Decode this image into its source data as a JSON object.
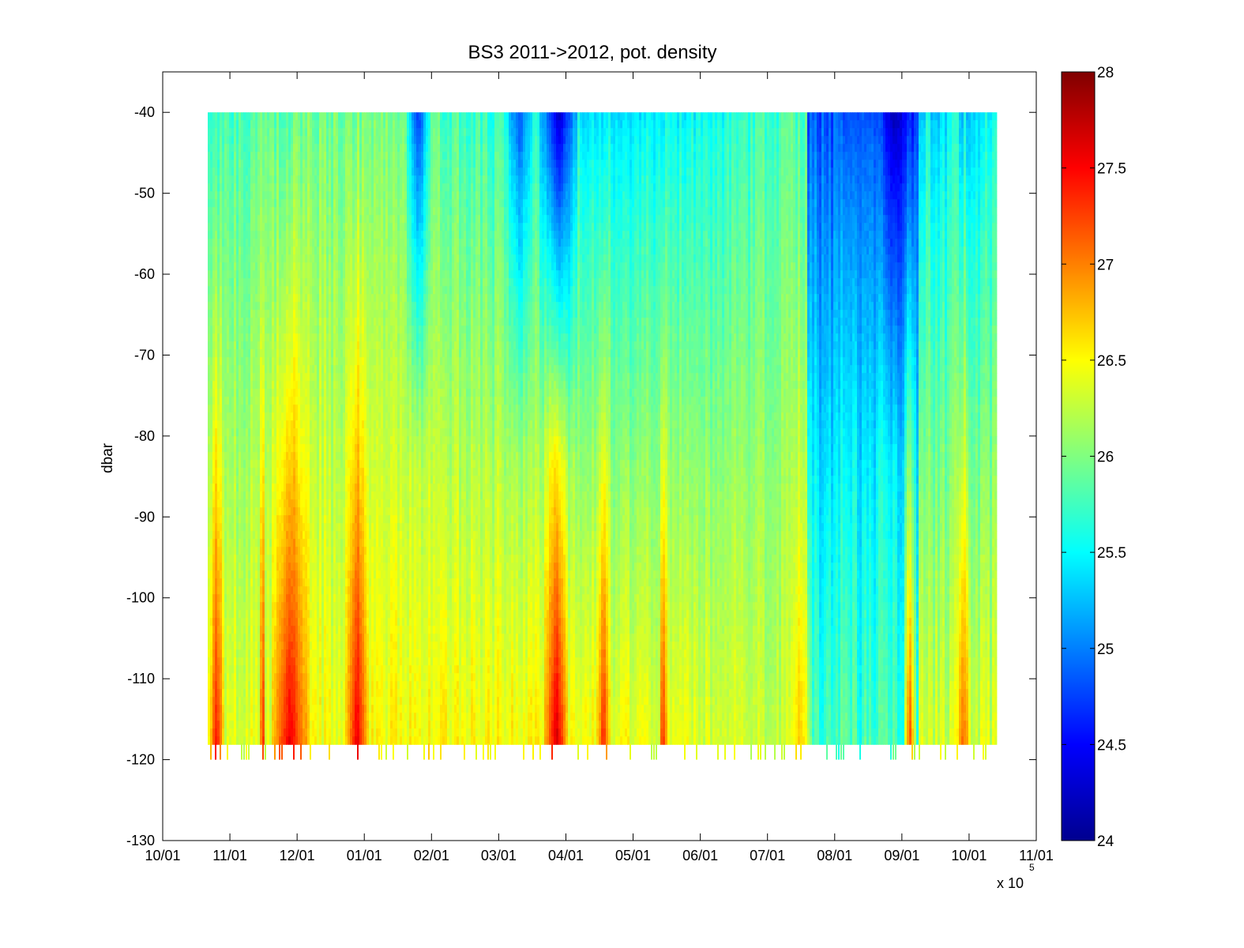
{
  "chart_data": {
    "type": "heatmap",
    "title": "BS3 2011->2012,  pot. density",
    "xlabel": "",
    "ylabel": "dbar",
    "x_axis": {
      "ticks": [
        "10/01",
        "11/01",
        "12/01",
        "01/01",
        "02/01",
        "03/01",
        "04/01",
        "05/01",
        "06/01",
        "07/01",
        "08/01",
        "09/01",
        "10/01",
        "11/01"
      ],
      "exponent_label": "x 10",
      "exponent_power": "5",
      "data_range": [
        "10/01",
        "10/15"
      ]
    },
    "y_axis": {
      "ylim": [
        -130,
        -35
      ],
      "ticks": [
        -40,
        -50,
        -60,
        -70,
        -80,
        -90,
        -100,
        -110,
        -120,
        -130
      ]
    },
    "colorbar": {
      "clim": [
        24,
        28
      ],
      "ticks": [
        24,
        24.5,
        25,
        25.5,
        26,
        26.5,
        27,
        27.5,
        28
      ],
      "colormap": "jet"
    },
    "grid": false,
    "depth_range": [
      -40,
      -118
    ],
    "time_bands": [
      {
        "period": "10/22-10/28",
        "value": 27.5
      },
      {
        "period": "11/15-11/16",
        "value": 27.3
      },
      {
        "period": "11/20-12/05",
        "value": 27.6
      },
      {
        "period": "12/23-01/02",
        "value": 27.6
      },
      {
        "period": "01/20-01/30",
        "value": 24.7
      },
      {
        "period": "03/05-03/15",
        "value": 24.8
      },
      {
        "period": "03/20-04/05",
        "value": 24.3
      },
      {
        "period": "03/22-04/01",
        "value": 27.7
      },
      {
        "period": "04/15-04/20",
        "value": 27.4
      },
      {
        "period": "05/13-05/15",
        "value": 27.4
      },
      {
        "period": "07/10-07/20",
        "value": 26.7
      },
      {
        "period": "08/01-08/20",
        "value": 24.8
      },
      {
        "period": "08/20-09/05",
        "value": 24.2
      },
      {
        "period": "09/02-09/06",
        "value": 27.3
      },
      {
        "period": "09/25-10/01",
        "value": 27.1
      }
    ]
  }
}
